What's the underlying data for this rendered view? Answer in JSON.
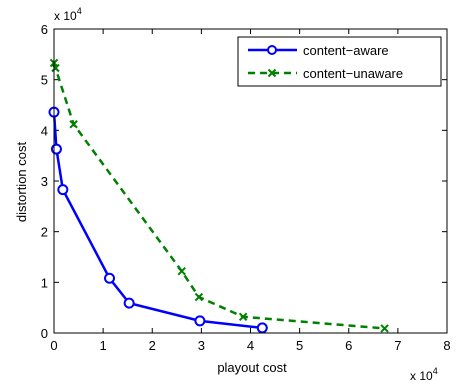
{
  "chart_data": {
    "type": "line",
    "xlabel": "playout cost",
    "ylabel": "distortion cost",
    "x_exponent_label": "x 10",
    "x_exponent_power": "4",
    "y_exponent_label": "x 10",
    "y_exponent_power": "4",
    "xlim": [
      0,
      80000
    ],
    "ylim": [
      0,
      60000
    ],
    "xticks": [
      0,
      10000,
      20000,
      30000,
      40000,
      50000,
      60000,
      70000,
      80000
    ],
    "xtick_labels": [
      "0",
      "1",
      "2",
      "3",
      "4",
      "5",
      "6",
      "7",
      "8"
    ],
    "yticks": [
      0,
      10000,
      20000,
      30000,
      40000,
      50000,
      60000
    ],
    "ytick_labels": [
      "0",
      "1",
      "2",
      "3",
      "4",
      "5",
      "6"
    ],
    "grid": false,
    "legend_position": "top-right",
    "series": [
      {
        "name": "content−aware",
        "color": "#0000ff",
        "line_style": "solid",
        "marker": "circle",
        "x": [
          0,
          500,
          1800,
          11300,
          15300,
          29700,
          42400
        ],
        "y": [
          43600,
          36300,
          28300,
          10800,
          5900,
          2400,
          1000
        ]
      },
      {
        "name": "content−unaware",
        "color": "#008000",
        "line_style": "dashed",
        "marker": "x",
        "x": [
          0,
          300,
          4000,
          26000,
          29500,
          38500,
          67300
        ],
        "y": [
          53300,
          52300,
          41200,
          12200,
          7100,
          3200,
          900
        ]
      }
    ]
  }
}
